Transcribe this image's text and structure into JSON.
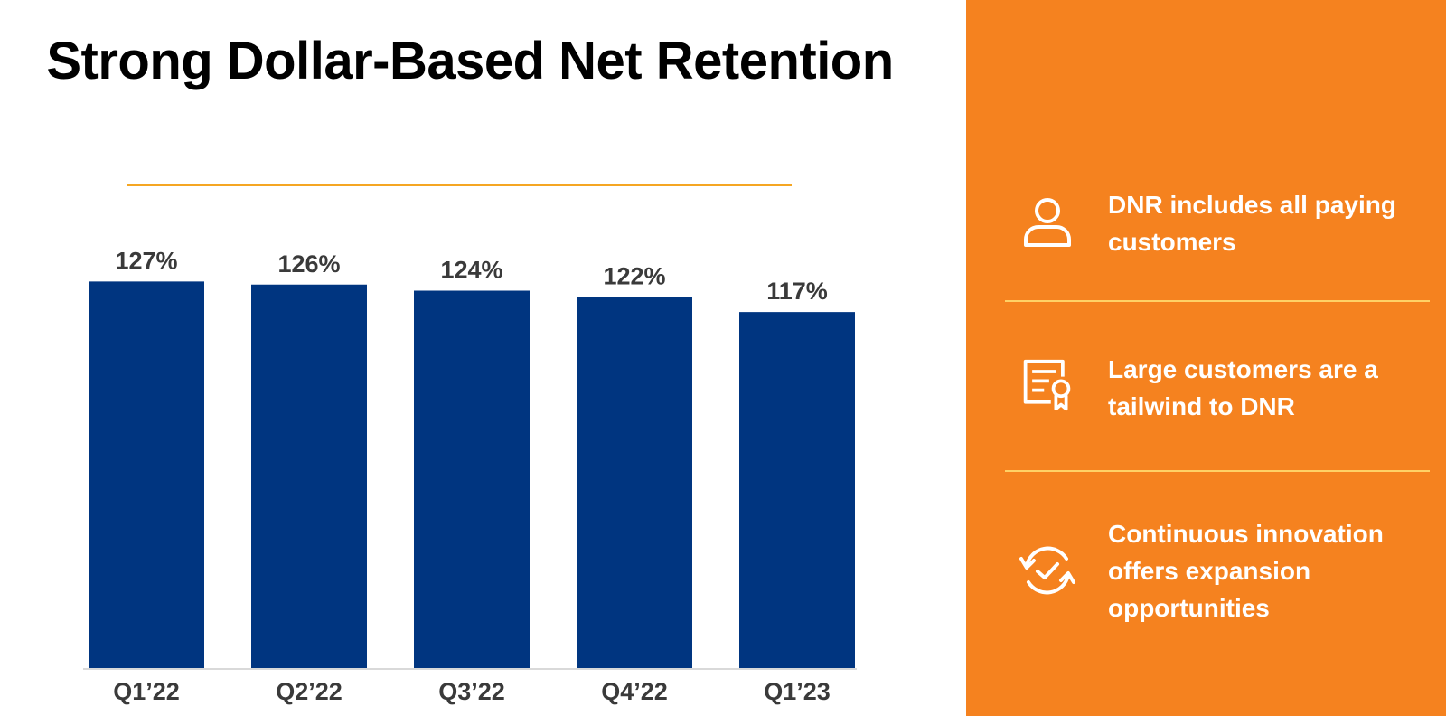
{
  "title": "Strong Dollar-Based Net Retention",
  "chart_data": {
    "type": "bar",
    "categories": [
      "Q1’22",
      "Q2’22",
      "Q3’22",
      "Q4’22",
      "Q1’23"
    ],
    "values": [
      127,
      126,
      124,
      122,
      117
    ],
    "value_labels": [
      "127%",
      "126%",
      "124%",
      "122%",
      "117%"
    ],
    "title": "Strong Dollar-Based Net Retention",
    "xlabel": "",
    "ylabel": "",
    "unit": "%",
    "bar_color": "#003580",
    "grid": false,
    "legend": "none"
  },
  "colors": {
    "accent_orange": "#f5821f",
    "underline": "#f5a623",
    "bar": "#003580"
  },
  "side_panel": {
    "items": [
      {
        "icon": "user-icon",
        "text": "DNR includes all paying customers"
      },
      {
        "icon": "certificate-icon",
        "text": "Large customers are a tailwind to DNR"
      },
      {
        "icon": "refresh-check-icon",
        "text": "Continuous innovation offers expansion opportunities"
      }
    ]
  }
}
